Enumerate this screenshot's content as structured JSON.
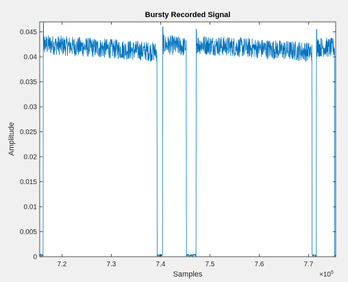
{
  "chart_data": {
    "type": "line",
    "title": "Bursty Recorded Signal",
    "xlabel": "Samples",
    "ylabel": "Amplitude",
    "x_exponent_label": "×10",
    "x_exponent_power": "5",
    "xlim": [
      715500,
      775500
    ],
    "ylim": [
      0,
      0.047
    ],
    "x_tick_values": [
      720000,
      730000,
      740000,
      750000,
      760000,
      770000
    ],
    "x_tick_labels": [
      "7.2",
      "7.3",
      "7.4",
      "7.5",
      "7.6",
      "7.7"
    ],
    "y_tick_values": [
      0,
      0.005,
      0.01,
      0.015,
      0.02,
      0.025,
      0.03,
      0.035,
      0.04,
      0.045
    ],
    "y_tick_labels": [
      "0",
      "0.005",
      "0.01",
      "0.015",
      "0.02",
      "0.025",
      "0.03",
      "0.035",
      "0.04",
      "0.045"
    ],
    "series": [
      {
        "color": "#0072bd",
        "bursts": [
          {
            "x_start": 716200,
            "x_end": 739300,
            "level_start": 0.0425,
            "level_end": 0.041,
            "noise": 0.002,
            "peak": 0.047
          },
          {
            "x_start": 740400,
            "x_end": 745200,
            "level_start": 0.0425,
            "level_end": 0.042,
            "noise": 0.002,
            "peak": 0.046
          },
          {
            "x_start": 747200,
            "x_end": 770700,
            "level_start": 0.0425,
            "level_end": 0.041,
            "noise": 0.002,
            "peak": 0.0455
          },
          {
            "x_start": 771600,
            "x_end": 775300,
            "level_start": 0.042,
            "level_end": 0.0418,
            "noise": 0.002,
            "peak": 0.0455
          }
        ],
        "baseline": 0.0005
      }
    ],
    "grid": false,
    "box": true
  }
}
